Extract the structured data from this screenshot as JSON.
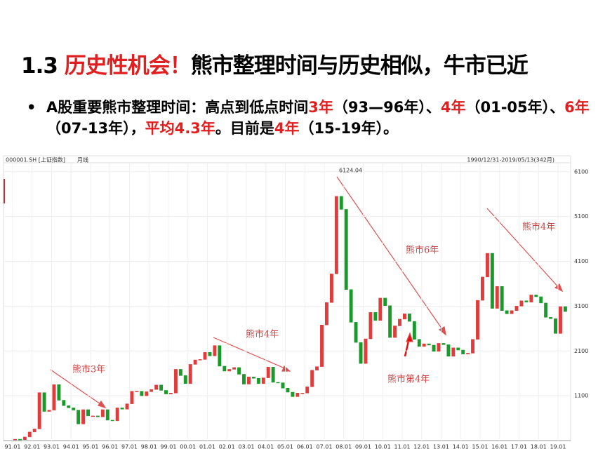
{
  "slide": {
    "title": [
      {
        "text": "1.3 ",
        "color": "#000000"
      },
      {
        "text": "历史性机会！",
        "color": "#e02020"
      },
      {
        "text": "熊市整理时间与历史相似，牛市已近",
        "color": "#000000"
      }
    ],
    "bullet": [
      {
        "text": "A股重要熊市整理时间：高点到低点时间",
        "color": "#000000"
      },
      {
        "text": "3年",
        "color": "#e02020"
      },
      {
        "text": "（93—96年）、",
        "color": "#000000"
      },
      {
        "text": "4年",
        "color": "#e02020"
      },
      {
        "text": "（01-05年）、",
        "color": "#000000"
      },
      {
        "text": "6年",
        "color": "#e02020"
      },
      {
        "text": "（07-13年），",
        "color": "#000000"
      },
      {
        "text": "平均4.3年",
        "color": "#e02020"
      },
      {
        "text": "。目前是",
        "color": "#000000"
      },
      {
        "text": "4年",
        "color": "#e02020"
      },
      {
        "text": "（15-19年）。",
        "color": "#000000"
      }
    ]
  },
  "chart_data": {
    "type": "candlestick",
    "header_left": "000001.SH [上证指数]",
    "header_period": "月线",
    "header_right": "1990/12/31-2019/05/13(342月)",
    "peak_label": "6124.04",
    "annotations": [
      "熊市3年",
      "熊市4年",
      "熊市6年",
      "熊市第4年",
      "熊市4年"
    ],
    "up_color": "#e03c3c",
    "down_color": "#1a9a2a",
    "categories": [
      "91.01",
      null,
      null,
      null,
      "92.01",
      null,
      null,
      null,
      "93.01",
      null,
      null,
      null,
      "94.01",
      null,
      null,
      null,
      "95.01",
      null,
      null,
      null,
      "96.01",
      null,
      null,
      null,
      "97.01",
      null,
      null,
      null,
      "98.01",
      null,
      null,
      null,
      "99.01",
      null,
      null,
      null,
      "00.01",
      null,
      null,
      null,
      "01.01",
      null,
      null,
      null,
      "02.01",
      null,
      null,
      null,
      "03.01",
      null,
      null,
      null,
      "04.01",
      null,
      null,
      null,
      "05.01",
      null,
      null,
      null,
      "06.01",
      null,
      null,
      null,
      "07.01",
      null,
      null,
      null,
      "08.01",
      null,
      null,
      null,
      "09.01",
      null,
      null,
      null,
      "10.01",
      null,
      null,
      null,
      "11.01",
      null,
      null,
      null,
      "12.01",
      null,
      null,
      null,
      "13.01",
      null,
      null,
      null,
      "14.01",
      null,
      null,
      null,
      "15.01",
      null,
      null,
      null,
      "16.01",
      null,
      null,
      null,
      "17.01",
      null,
      null,
      null,
      "18.01",
      null,
      null,
      null,
      "19.01",
      null
    ],
    "open": [
      127,
      130,
      120,
      180,
      290,
      360,
      1170,
      750,
      780,
      1350,
      1000,
      880,
      830,
      780,
      470,
      790,
      650,
      650,
      630,
      790,
      555,
      540,
      830,
      800,
      920,
      1200,
      1200,
      1100,
      1190,
      1240,
      1340,
      1220,
      1140,
      1160,
      1690,
      1550,
      1370,
      1800,
      1900,
      1910,
      2070,
      1990,
      2220,
      1760,
      1650,
      1690,
      1730,
      1580,
      1360,
      1520,
      1490,
      1370,
      1500,
      1740,
      1400,
      1390,
      1270,
      1180,
      1080,
      1160,
      1160,
      1300,
      1670,
      1750,
      2680,
      3180,
      3820,
      5550,
      5260,
      3470,
      2740,
      2290,
      1820,
      2370,
      2960,
      2780,
      3280,
      3110,
      2400,
      2660,
      2810,
      2930,
      2760,
      2360,
      2200,
      2260,
      2230,
      2090,
      2270,
      2240,
      1980,
      2170,
      2120,
      2030,
      2050,
      2360,
      3230,
      3750,
      4280,
      3050,
      3540,
      3000,
      2930,
      3000,
      3100,
      3220,
      3190,
      3350,
      3310,
      3170,
      2850,
      2820,
      2490,
      3090
    ],
    "close": [
      130,
      120,
      180,
      290,
      360,
      1170,
      750,
      780,
      1350,
      1000,
      880,
      830,
      780,
      470,
      790,
      650,
      650,
      630,
      790,
      555,
      540,
      830,
      800,
      920,
      1200,
      1200,
      1100,
      1190,
      1240,
      1340,
      1220,
      1140,
      1160,
      1690,
      1550,
      1370,
      1800,
      1900,
      1910,
      2070,
      1990,
      2220,
      1760,
      1650,
      1690,
      1730,
      1580,
      1360,
      1520,
      1490,
      1370,
      1500,
      1740,
      1400,
      1390,
      1270,
      1180,
      1080,
      1160,
      1160,
      1300,
      1670,
      1750,
      2680,
      3180,
      3820,
      5550,
      5260,
      3470,
      2740,
      2290,
      1820,
      2370,
      2960,
      2780,
      3280,
      3110,
      2400,
      2660,
      2810,
      2930,
      2760,
      2360,
      2200,
      2260,
      2230,
      2090,
      2270,
      2240,
      1980,
      2170,
      2120,
      2030,
      2050,
      2360,
      3230,
      3750,
      4280,
      3050,
      3540,
      3000,
      2930,
      3000,
      3100,
      3220,
      3190,
      3350,
      3310,
      3170,
      2850,
      2820,
      2490,
      3090,
      2980
    ],
    "ylim": [
      100,
      6300
    ],
    "yticks": [
      1100,
      2100,
      3100,
      4100,
      5100,
      6100
    ],
    "grid": true
  }
}
